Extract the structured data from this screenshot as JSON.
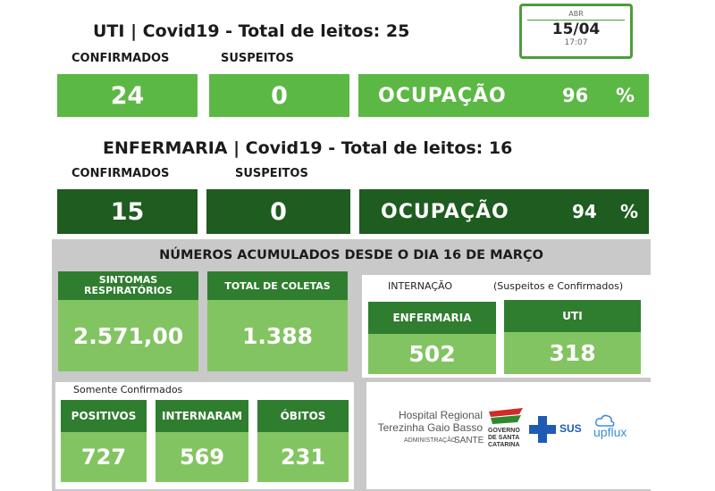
{
  "uti": {
    "title": "UTI | Covid19 - Total de leitos: 25",
    "confirmed_label": "CONFIRMADOS",
    "suspected_label": "SUSPEITOS",
    "confirmed": "24",
    "suspected": "0",
    "occupancy_label": "OCUPAÇÃO",
    "occupancy": "96",
    "pct": "%"
  },
  "date": {
    "month": "ABR",
    "day": "15/04",
    "time": "17:07"
  },
  "enfermaria": {
    "title": "ENFERMARIA | Covid19 - Total de leitos: 16",
    "confirmed_label": "CONFIRMADOS",
    "suspected_label": "SUSPEITOS",
    "confirmed": "15",
    "suspected": "0",
    "occupancy_label": "OCUPAÇÃO",
    "occupancy": "94",
    "pct": "%"
  },
  "accumulated": {
    "title": "NÚMEROS ACUMULADOS DESDE O DIA 16 DE MARÇO",
    "sintomas_label_1": "SINTOMAS",
    "sintomas_label_2": "RESPIRATÓRIOS",
    "sintomas": "2.571,00",
    "coletas_label": "TOTAL DE COLETAS",
    "coletas": "1.388",
    "internacao_label": "INTERNAÇÃO",
    "internacao_note": "(Suspeitos e Confirmados)",
    "enfermaria_label": "ENFERMARIA",
    "enfermaria": "502",
    "uti_label": "UTI",
    "uti": "318",
    "only_confirmed": "Somente Confirmados",
    "positivos_label": "POSITIVOS",
    "positivos": "727",
    "internaram_label": "INTERNARAM",
    "internaram": "569",
    "obitos_label": "ÓBITOS",
    "obitos": "231"
  },
  "logos": {
    "hospital_1": "Hospital Regional",
    "hospital_2": "Terezinha Gaio Basso",
    "admin": "ADMINISTRAÇÃO",
    "sante": "SANTE",
    "gov_1": "GOVERNO",
    "gov_2": "DE SANTA",
    "gov_3": "CATARINA",
    "sus": "SUS",
    "upflux": "upflux"
  },
  "colors": {
    "light_green": "#5cb845",
    "dark_green": "#1e5c20",
    "card_green": "#83c462"
  }
}
